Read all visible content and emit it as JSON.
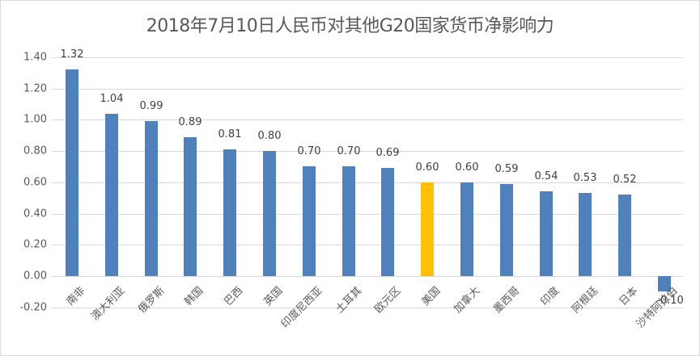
{
  "chart_data": {
    "type": "bar",
    "title": "2018年7月10日人民币对其他G20国家货币净影响力",
    "xlabel": "",
    "ylabel": "",
    "ylim": [
      -0.2,
      1.4
    ],
    "yticks": [
      "1.40",
      "1.20",
      "1.00",
      "0.80",
      "0.60",
      "0.40",
      "0.20",
      "0.00",
      "-0.20"
    ],
    "grid": true,
    "legend": null,
    "categories": [
      "南非",
      "澳大利亚",
      "俄罗斯",
      "韩国",
      "巴西",
      "英国",
      "印度尼西亚",
      "土耳其",
      "欧元区",
      "美国",
      "加拿大",
      "墨西哥",
      "印度",
      "阿根廷",
      "日本",
      "沙特阿拉伯"
    ],
    "values": [
      1.32,
      1.04,
      0.99,
      0.89,
      0.81,
      0.8,
      0.7,
      0.7,
      0.69,
      0.6,
      0.6,
      0.59,
      0.54,
      0.53,
      0.52,
      -0.1
    ],
    "value_labels": [
      "1.32",
      "1.04",
      "0.99",
      "0.89",
      "0.81",
      "0.80",
      "0.70",
      "0.70",
      "0.69",
      "0.60",
      "0.60",
      "0.59",
      "0.54",
      "0.53",
      "0.52",
      "-0.10"
    ],
    "highlight_category": "美国",
    "colors": {
      "default": "#4f81bd",
      "highlight": "#ffc000"
    }
  }
}
